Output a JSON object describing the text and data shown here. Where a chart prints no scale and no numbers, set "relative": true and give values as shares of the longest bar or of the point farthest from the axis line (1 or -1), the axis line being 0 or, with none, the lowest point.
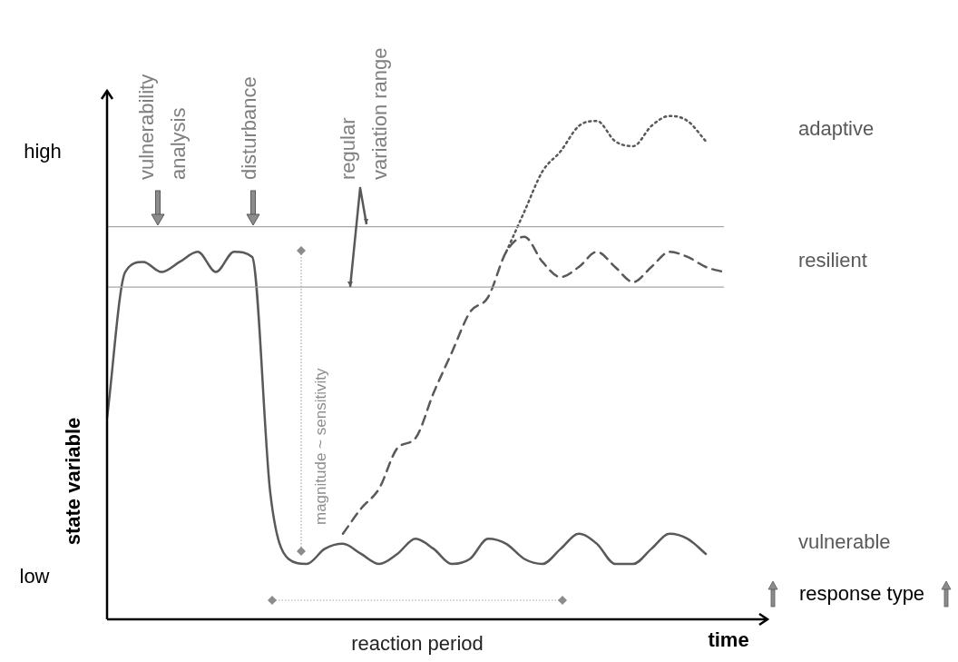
{
  "chart_data": {
    "type": "line",
    "relative": true,
    "xlabel": "time",
    "ylabel": "state variable",
    "categories": [
      null,
      null,
      null,
      null,
      null,
      null,
      null,
      null,
      null,
      null,
      null,
      null,
      null,
      null,
      null,
      null,
      null,
      null,
      null,
      null,
      null,
      null,
      null,
      null,
      null,
      null,
      null,
      null,
      null,
      null,
      null,
      null,
      null,
      null,
      null,
      null,
      null
    ],
    "series": [
      {
        "name": "vulnerable",
        "color": "#595959",
        "line_style": "solid",
        "values": [
          0.4,
          0.69,
          0.71,
          0.69,
          0.71,
          0.73,
          0.69,
          0.73,
          0.72,
          0.25,
          0.12,
          0.11,
          0.14,
          0.15,
          0.13,
          0.11,
          0.13,
          0.16,
          0.14,
          0.11,
          0.12,
          0.16,
          0.15,
          0.12,
          0.11,
          0.14,
          0.17,
          0.15,
          0.11,
          0.11,
          0.14,
          0.17,
          0.16,
          0.13,
          null,
          null,
          null
        ]
      },
      {
        "name": "resilient",
        "color": "#595959",
        "line_style": "dashed",
        "values": [
          null,
          null,
          null,
          null,
          null,
          null,
          null,
          null,
          null,
          null,
          null,
          null,
          null,
          0.17,
          0.22,
          0.26,
          0.34,
          0.36,
          0.45,
          0.53,
          0.61,
          0.64,
          0.73,
          0.76,
          0.71,
          0.68,
          0.7,
          0.73,
          0.7,
          0.67,
          0.7,
          0.73,
          0.72,
          0.7,
          0.69,
          null,
          null
        ]
      },
      {
        "name": "adaptive",
        "color": "#595959",
        "line_style": "dotted",
        "values": [
          null,
          null,
          null,
          null,
          null,
          null,
          null,
          null,
          null,
          null,
          null,
          null,
          null,
          null,
          null,
          null,
          null,
          null,
          null,
          null,
          null,
          null,
          0.73,
          0.81,
          0.89,
          0.93,
          0.98,
          0.99,
          0.95,
          0.94,
          0.98,
          1.0,
          0.99,
          0.95,
          null,
          null,
          null
        ]
      }
    ],
    "ref_lines": [
      {
        "axis": "y",
        "value": 0.78,
        "color": "#a6a6a6"
      },
      {
        "axis": "y",
        "value": 0.66,
        "color": "#a6a6a6"
      }
    ],
    "annotations": [
      "vulnerability analysis",
      "disturbance",
      "regular variation range",
      "magnitude ~ sensitivity",
      "reaction period",
      "response type",
      "high",
      "low"
    ],
    "legend": false,
    "marker": "none"
  }
}
